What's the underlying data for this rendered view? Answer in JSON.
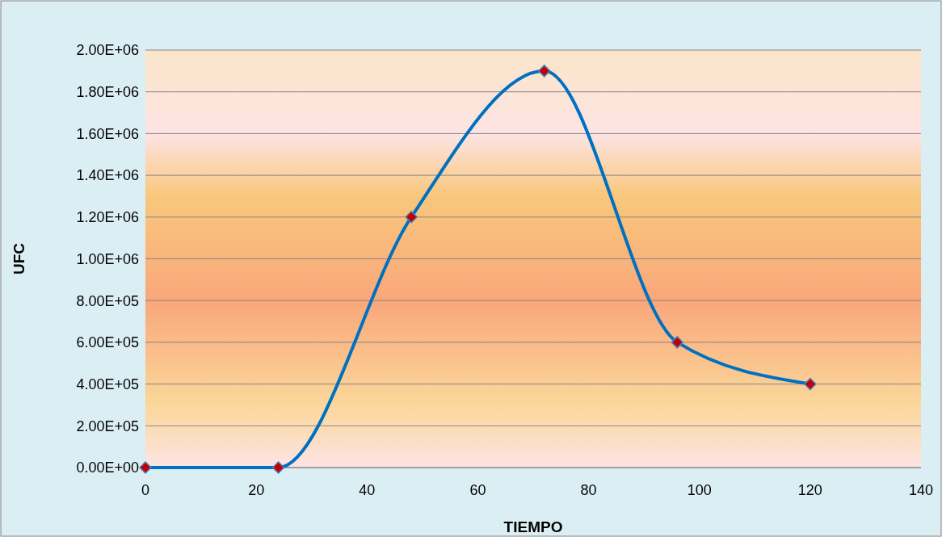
{
  "chart_data": {
    "type": "line",
    "xlabel": "TIEMPO",
    "ylabel": "UFC",
    "x": [
      0,
      24,
      48,
      72,
      96,
      120
    ],
    "series": [
      {
        "color": "#0070c0",
        "values": [
          0,
          0,
          1200000,
          1900000,
          600000,
          400000
        ]
      }
    ],
    "xlim": [
      0,
      140
    ],
    "xticks": [
      0,
      20,
      40,
      60,
      80,
      100,
      120,
      140
    ],
    "ylim": [
      0,
      2000000
    ],
    "yticks": [
      {
        "value": 0,
        "label": "0.00E+00"
      },
      {
        "value": 200000,
        "label": "2.00E+05"
      },
      {
        "value": 400000,
        "label": "4.00E+05"
      },
      {
        "value": 600000,
        "label": "6.00E+05"
      },
      {
        "value": 800000,
        "label": "8.00E+05"
      },
      {
        "value": 1000000,
        "label": "1.00E+06"
      },
      {
        "value": 1200000,
        "label": "1.20E+06"
      },
      {
        "value": 1400000,
        "label": "1.40E+06"
      },
      {
        "value": 1600000,
        "label": "1.60E+06"
      },
      {
        "value": 1800000,
        "label": "1.80E+06"
      },
      {
        "value": 2000000,
        "label": "2.00E+06"
      }
    ],
    "grid": "y",
    "marker": "diamond",
    "line_style": "solid"
  }
}
